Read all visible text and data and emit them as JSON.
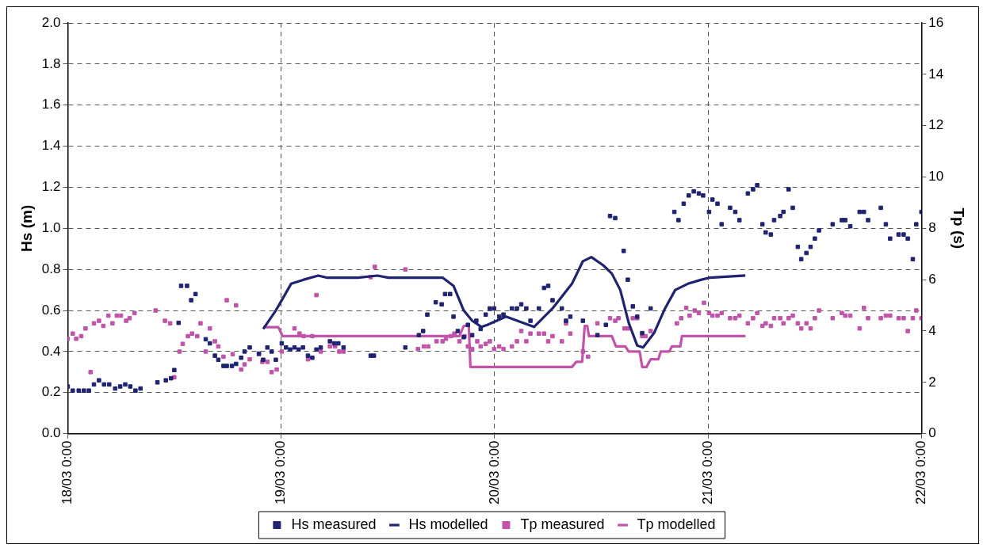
{
  "chart_data": {
    "type": "line",
    "ylabel": "Hs (m)",
    "y2label": "Tp (s)",
    "xlim": [
      "--03-18T00:00",
      "--03-22T00:00"
    ],
    "xticks": [
      {
        "value": "--03-18T00:00",
        "label": "18/03 0:00"
      },
      {
        "value": "--03-19T00:00",
        "label": "19/03 0:00"
      },
      {
        "value": "--03-20T00:00",
        "label": "20/03 0:00"
      },
      {
        "value": "--03-21T00:00",
        "label": "21/03 0:00"
      },
      {
        "value": "--03-22T00:00",
        "label": "22/03 0:00"
      }
    ],
    "ylim": [
      0,
      2
    ],
    "yticks": [
      {
        "value": 0,
        "label": "0.0"
      },
      0.2,
      0.4,
      0.6,
      0.8,
      {
        "value": 1,
        "label": "1.0"
      },
      1.2,
      1.4,
      1.6,
      1.8,
      {
        "value": 2,
        "label": "2.0"
      }
    ],
    "y2lim": [
      0,
      16
    ],
    "y2ticks": [
      0,
      2,
      4,
      6,
      8,
      10,
      12,
      14,
      16
    ],
    "grid": true,
    "legend": "bottom",
    "series": [
      {
        "name": "Hs measured",
        "type": "scatter",
        "marker": "square",
        "color": "#1f2370",
        "x": [
          "--03-18T00:00",
          "--03-18T00:34",
          "--03-18T01:14",
          "--03-18T01:49",
          "--03-18T02:23",
          "--03-18T02:57",
          "--03-18T03:31",
          "--03-18T04:05",
          "--03-18T04:40",
          "--03-18T05:20",
          "--03-18T05:54",
          "--03-18T06:28",
          "--03-18T07:02",
          "--03-18T07:37",
          "--03-18T08:11",
          "--03-18T10:05",
          "--03-18T11:02",
          "--03-18T11:37",
          "--03-18T11:59",
          "--03-18T12:28",
          "--03-18T12:45",
          "--03-18T13:25",
          "--03-18T13:53",
          "--03-18T14:22",
          "--03-18T15:31",
          "--03-18T15:59",
          "--03-18T16:33",
          "--03-18T16:56",
          "--03-18T17:31",
          "--03-18T17:53",
          "--03-18T18:28",
          "--03-18T18:56",
          "--03-18T19:30",
          "--03-18T19:53",
          "--03-18T20:28",
          "--03-18T21:30",
          "--03-18T21:59",
          "--03-18T22:27",
          "--03-18T22:56",
          "--03-18T23:24",
          "--03-19T00:04",
          "--03-19T00:33",
          "--03-19T01:01",
          "--03-19T01:30",
          "--03-19T01:58",
          "--03-19T02:27",
          "--03-19T03:01",
          "--03-19T03:30",
          "--03-19T03:58",
          "--03-19T04:27",
          "--03-19T05:29",
          "--03-19T05:58",
          "--03-19T06:26",
          "--03-19T07:01",
          "--03-19T10:04",
          "--03-19T10:26",
          "--03-19T13:58",
          "--03-19T15:29",
          "--03-19T15:58",
          "--03-19T16:26",
          "--03-19T17:23",
          "--03-19T18:03",
          "--03-19T18:26",
          "--03-19T19:00",
          "--03-19T19:23",
          "--03-19T19:52",
          "--03-19T20:32",
          "--03-19T21:00",
          "--03-19T21:29",
          "--03-19T21:57",
          "--03-19T22:26",
          "--03-19T23:00",
          "--03-19T23:28",
          "--03-19T23:57",
          "--03-20T00:31",
          "--03-20T01:00",
          "--03-20T01:57",
          "--03-20T02:31",
          "--03-20T03:00",
          "--03-20T03:34",
          "--03-20T04:02",
          "--03-20T04:59",
          "--03-20T05:34",
          "--03-20T06:02",
          "--03-20T06:31",
          "--03-20T07:34",
          "--03-20T08:02",
          "--03-20T08:31",
          "--03-20T09:56",
          "--03-20T11:34",
          "--03-20T12:31",
          "--03-20T12:59",
          "--03-20T13:34",
          "--03-20T14:31",
          "--03-20T14:59",
          "--03-20T15:33",
          "--03-20T16:02",
          "--03-20T16:36",
          "--03-20T17:33",
          "--03-20T20:13",
          "--03-20T20:41",
          "--03-20T21:16",
          "--03-20T21:50",
          "--03-20T22:24",
          "--03-20T22:58",
          "--03-20T23:27",
          "--03-21T00:07",
          "--03-21T00:30",
          "--03-21T01:04",
          "--03-21T01:32",
          "--03-21T02:29",
          "--03-21T03:04",
          "--03-21T03:32",
          "--03-21T04:29",
          "--03-21T05:04",
          "--03-21T05:32",
          "--03-21T06:07",
          "--03-21T06:29",
          "--03-21T07:04",
          "--03-21T07:26",
          "--03-21T08:07",
          "--03-21T08:29",
          "--03-21T09:04",
          "--03-21T09:32",
          "--03-21T10:06",
          "--03-21T10:29",
          "--03-21T11:04",
          "--03-21T11:32",
          "--03-21T12:01",
          "--03-21T12:29",
          "--03-21T14:01",
          "--03-21T15:03",
          "--03-21T15:26",
          "--03-21T16:00",
          "--03-21T17:03",
          "--03-21T17:32",
          "--03-21T18:00",
          "--03-21T19:26",
          "--03-21T20:00",
          "--03-21T20:29",
          "--03-21T21:26",
          "--03-21T22:00",
          "--03-21T22:28",
          "--03-21T23:02",
          "--03-21T23:25",
          "--03-22T00:00"
        ],
        "values": [
          0.23,
          0.21,
          0.21,
          0.21,
          0.21,
          0.24,
          0.26,
          0.24,
          0.24,
          0.22,
          0.23,
          0.24,
          0.23,
          0.21,
          0.22,
          0.25,
          0.26,
          0.27,
          0.31,
          0.54,
          0.72,
          0.72,
          0.65,
          0.68,
          0.46,
          0.44,
          0.38,
          0.36,
          0.33,
          0.33,
          0.33,
          0.34,
          0.37,
          0.4,
          0.42,
          0.39,
          0.36,
          0.42,
          0.4,
          0.36,
          0.44,
          0.42,
          0.41,
          0.42,
          0.41,
          0.42,
          0.38,
          0.37,
          0.41,
          0.42,
          0.45,
          0.44,
          0.44,
          0.42,
          0.38,
          0.38,
          0.42,
          0.48,
          0.5,
          0.58,
          0.64,
          0.63,
          0.68,
          0.68,
          0.57,
          0.5,
          0.47,
          0.53,
          0.48,
          0.55,
          0.51,
          0.58,
          0.61,
          0.61,
          0.57,
          0.58,
          0.61,
          0.61,
          0.63,
          0.61,
          0.55,
          0.61,
          0.71,
          0.72,
          0.65,
          0.61,
          0.55,
          0.57,
          0.55,
          0.48,
          0.53,
          1.06,
          1.05,
          0.89,
          0.75,
          0.62,
          0.57,
          0.49,
          0.61,
          1.08,
          1.04,
          1.12,
          1.16,
          1.18,
          1.17,
          1.16,
          1.08,
          1.14,
          1.12,
          1.02,
          1.1,
          1.08,
          1.04,
          1.17,
          1.19,
          1.21,
          1.02,
          0.98,
          0.97,
          1.04,
          1.06,
          1.08,
          1.19,
          1.1,
          0.91,
          0.85,
          0.88,
          0.91,
          0.95,
          0.99,
          1.02,
          1.04,
          1.04,
          1.01,
          1.08,
          1.08,
          1.04,
          1.1,
          1.02,
          0.95,
          0.97,
          0.97,
          0.95,
          0.85,
          1.02,
          1.08
        ]
      },
      {
        "name": "Hs modelled",
        "marker": "none",
        "color": "#1f2370",
        "x": [
          "--03-18T21:59",
          "--03-18T23:24",
          "--03-19T00:04",
          "--03-19T01:07",
          "--03-19T02:32",
          "--03-19T04:10",
          "--03-19T05:07",
          "--03-19T08:38",
          "--03-19T10:49",
          "--03-19T12:04",
          "--03-19T18:09",
          "--03-19T19:23",
          "--03-19T20:32",
          "--03-19T21:29",
          "--03-19T22:32",
          "--03-19T23:11",
          "--03-20T01:17",
          "--03-20T04:26",
          "--03-20T06:31",
          "--03-20T08:42",
          "--03-20T09:56",
          "--03-20T10:53",
          "--03-20T12:13",
          "--03-20T13:11",
          "--03-20T14:08",
          "--03-20T15:05",
          "--03-20T16:02",
          "--03-20T16:42",
          "--03-20T17:56",
          "--03-20T19:10",
          "--03-20T20:19",
          "--03-20T21:44",
          "--03-20T23:16",
          "--03-21T00:13",
          "--03-21T04:12"
        ],
        "values": [
          0.51,
          0.6,
          0.65,
          0.73,
          0.75,
          0.77,
          0.76,
          0.76,
          0.77,
          0.76,
          0.76,
          0.72,
          0.6,
          0.55,
          0.52,
          0.53,
          0.57,
          0.52,
          0.61,
          0.73,
          0.84,
          0.86,
          0.82,
          0.78,
          0.7,
          0.54,
          0.43,
          0.42,
          0.49,
          0.61,
          0.7,
          0.73,
          0.75,
          0.76,
          0.77
        ]
      },
      {
        "name": "Tp measured",
        "type": "scatter",
        "marker": "square",
        "axis": "y2",
        "color": "#c054a8",
        "x": [
          "--03-18T00:00",
          "--03-18T00:34",
          "--03-18T00:57",
          "--03-18T01:31",
          "--03-18T02:00",
          "--03-18T02:34",
          "--03-18T02:57",
          "--03-18T03:31",
          "--03-18T04:00",
          "--03-18T04:34",
          "--03-18T05:02",
          "--03-18T05:31",
          "--03-18T05:59",
          "--03-18T06:34",
          "--03-18T06:57",
          "--03-18T07:31",
          "--03-18T09:53",
          "--03-18T10:56",
          "--03-18T11:31",
          "--03-18T11:59",
          "--03-18T12:34",
          "--03-18T12:56",
          "--03-18T13:31",
          "--03-18T13:59",
          "--03-18T14:34",
          "--03-18T14:56",
          "--03-18T15:31",
          "--03-18T15:59",
          "--03-18T16:33",
          "--03-18T16:56",
          "--03-18T17:31",
          "--03-18T17:53",
          "--03-18T18:33",
          "--03-18T18:56",
          "--03-18T19:30",
          "--03-18T19:53",
          "--03-18T20:28",
          "--03-18T21:30",
          "--03-18T21:53",
          "--03-18T22:27",
          "--03-18T22:56",
          "--03-18T23:30",
          "--03-19T00:04",
          "--03-19T01:30",
          "--03-19T02:04",
          "--03-19T02:32",
          "--03-19T03:01",
          "--03-19T03:30",
          "--03-19T03:58",
          "--03-19T04:27",
          "--03-19T05:29",
          "--03-19T06:04",
          "--03-19T06:32",
          "--03-19T07:01",
          "--03-19T10:04",
          "--03-19T10:32",
          "--03-19T13:58",
          "--03-19T15:23",
          "--03-19T16:03",
          "--03-19T16:32",
          "--03-19T17:29",
          "--03-19T18:09",
          "--03-19T18:32",
          "--03-19T19:06",
          "--03-19T19:29",
          "--03-19T20:03",
          "--03-19T20:37",
          "--03-19T21:00",
          "--03-19T21:29",
          "--03-19T22:03",
          "--03-19T22:26",
          "--03-19T23:00",
          "--03-19T23:28",
          "--03-19T23:57",
          "--03-20T00:31",
          "--03-20T01:00",
          "--03-20T01:57",
          "--03-20T02:31",
          "--03-20T03:00",
          "--03-20T03:34",
          "--03-20T04:02",
          "--03-20T04:59",
          "--03-20T05:34",
          "--03-20T06:02",
          "--03-20T06:31",
          "--03-20T07:34",
          "--03-20T08:02",
          "--03-20T08:31",
          "--03-20T09:56",
          "--03-20T10:31",
          "--03-20T11:34",
          "--03-20T12:59",
          "--03-20T13:34",
          "--03-20T13:56",
          "--03-20T14:36",
          "--03-20T14:59",
          "--03-20T15:33",
          "--03-20T16:02",
          "--03-20T16:36",
          "--03-20T16:59",
          "--03-20T17:33",
          "--03-20T20:30",
          "--03-20T20:59",
          "--03-20T21:33",
          "--03-20T21:56",
          "--03-20T22:30",
          "--03-20T22:58",
          "--03-20T23:33",
          "--03-21T00:07",
          "--03-21T00:30",
          "--03-21T01:04",
          "--03-21T01:32",
          "--03-21T02:29",
          "--03-21T03:04",
          "--03-21T03:32",
          "--03-21T04:29",
          "--03-21T05:04",
          "--03-21T05:32",
          "--03-21T06:07",
          "--03-21T06:29",
          "--03-21T07:04",
          "--03-21T07:26",
          "--03-21T08:07",
          "--03-21T08:29",
          "--03-21T09:04",
          "--03-21T09:32",
          "--03-21T10:06",
          "--03-21T10:29",
          "--03-21T11:04",
          "--03-21T11:32",
          "--03-21T12:01",
          "--03-21T12:29",
          "--03-21T14:01",
          "--03-21T15:03",
          "--03-21T15:26",
          "--03-21T16:00",
          "--03-21T17:03",
          "--03-21T17:32",
          "--03-21T18:00",
          "--03-21T19:26",
          "--03-21T20:00",
          "--03-21T20:29",
          "--03-21T21:26",
          "--03-21T22:00",
          "--03-21T22:28",
          "--03-21T23:02",
          "--03-21T23:25",
          "--03-22T00:00"
        ],
        "values": [
          3.7,
          3.9,
          3.7,
          3.8,
          4.1,
          2.4,
          4.3,
          4.4,
          4.2,
          4.6,
          4.3,
          4.6,
          4.6,
          4.4,
          4.5,
          4.7,
          4.8,
          4.4,
          4.3,
          2.2,
          3.2,
          3.5,
          3.8,
          3.9,
          3.8,
          4.3,
          3.2,
          4.1,
          3.6,
          3.4,
          3.0,
          5.2,
          3.1,
          5.0,
          2.5,
          2.7,
          2.9,
          3.1,
          2.8,
          2.8,
          2.4,
          2.5,
          3.2,
          4.1,
          3.9,
          3.8,
          2.9,
          3.8,
          5.4,
          3.2,
          3.4,
          3.4,
          3.2,
          3.2,
          6.1,
          6.5,
          6.4,
          3.3,
          3.4,
          3.4,
          3.6,
          3.6,
          3.7,
          3.8,
          3.9,
          3.6,
          3.8,
          3.4,
          3.3,
          3.6,
          3.4,
          3.5,
          3.6,
          3.3,
          3.4,
          3.3,
          3.4,
          3.6,
          4.0,
          3.6,
          3.9,
          3.9,
          3.9,
          3.6,
          3.8,
          3.6,
          4.3,
          3.9,
          3.2,
          3.0,
          4.3,
          4.5,
          4.4,
          4.5,
          4.1,
          4.1,
          4.5,
          4.5,
          3.8,
          3.8,
          4.0,
          4.3,
          4.5,
          4.9,
          4.6,
          4.8,
          4.7,
          5.1,
          4.7,
          4.6,
          4.6,
          4.7,
          4.5,
          4.5,
          4.6,
          4.3,
          4.5,
          4.7,
          4.2,
          4.3,
          4.2,
          4.5,
          4.5,
          4.3,
          4.5,
          4.6,
          4.3,
          4.1,
          4.3,
          4.1,
          4.5,
          4.8,
          4.5,
          4.7,
          4.6,
          4.6,
          4.1,
          4.9,
          4.5,
          4.5,
          4.6,
          4.6,
          4.5,
          4.5,
          4.0,
          4.5,
          4.8,
          4.5
        ]
      },
      {
        "name": "Tp modelled",
        "marker": "none",
        "axis": "y2",
        "color": "#c054a8",
        "x": [
          "--03-18T21:59",
          "--03-18T23:41",
          "--03-19T00:10",
          "--03-19T20:03",
          "--03-19T20:32",
          "--03-19T21:06",
          "--03-19T21:17",
          "--03-20T08:42",
          "--03-20T09:11",
          "--03-20T09:51",
          "--03-20T10:08",
          "--03-20T10:25",
          "--03-20T10:37",
          "--03-20T13:11",
          "--03-20T13:39",
          "--03-20T14:42",
          "--03-20T15:05",
          "--03-20T16:19",
          "--03-20T16:36",
          "--03-20T17:05",
          "--03-20T17:33",
          "--03-20T18:25",
          "--03-20T18:41",
          "--03-20T19:39",
          "--03-20T19:56",
          "--03-20T20:53",
          "--03-20T21:04",
          "--03-21T04:13"
        ],
        "values": [
          4.15,
          4.15,
          3.8,
          3.8,
          4.2,
          4.2,
          2.6,
          2.6,
          2.8,
          2.8,
          4.2,
          4.2,
          3.8,
          3.8,
          3.4,
          3.4,
          3.2,
          3.2,
          2.6,
          2.6,
          2.9,
          2.9,
          3.2,
          3.2,
          3.4,
          3.4,
          3.8,
          3.8
        ]
      }
    ]
  }
}
